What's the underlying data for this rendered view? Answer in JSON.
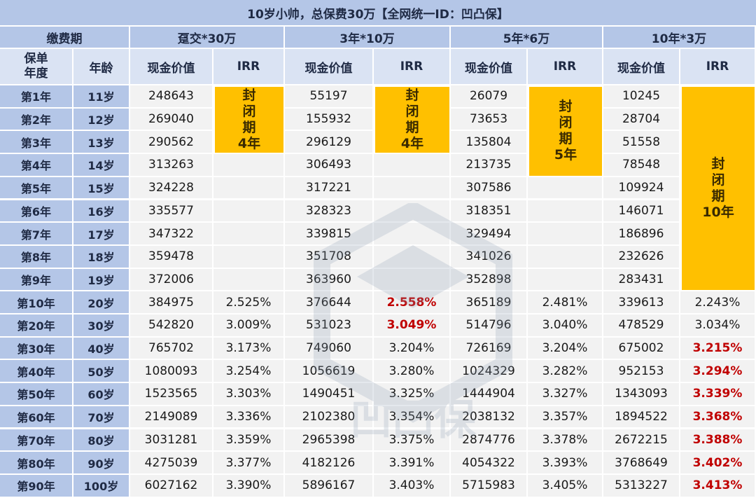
{
  "title": "10岁小帅，总保费30万【全网统一ID：凹凸保】",
  "headers": {
    "pay_period": "缴费期",
    "policy_year": "保单年度",
    "age": "年龄",
    "plans": [
      "趸交*30万",
      "3年*10万",
      "5年*6万",
      "10年*3万"
    ],
    "cash_value": "现金价值",
    "irr": "IRR"
  },
  "closed_periods": [
    "封闭期4年",
    "封闭期4年",
    "封闭期5年",
    "封闭期10年"
  ],
  "rows": [
    {
      "year": "第1年",
      "age": "11岁",
      "cv": [
        "248643",
        "55197",
        "26079",
        "10245"
      ],
      "irr": [
        "",
        "",
        "",
        ""
      ]
    },
    {
      "year": "第2年",
      "age": "12岁",
      "cv": [
        "269040",
        "155932",
        "73653",
        "28704"
      ],
      "irr": [
        "",
        "",
        "",
        ""
      ]
    },
    {
      "year": "第3年",
      "age": "13岁",
      "cv": [
        "290562",
        "296129",
        "135804",
        "51558"
      ],
      "irr": [
        "",
        "",
        "",
        ""
      ]
    },
    {
      "year": "第4年",
      "age": "14岁",
      "cv": [
        "313263",
        "306493",
        "213735",
        "78548"
      ],
      "irr": [
        "",
        "",
        "",
        ""
      ]
    },
    {
      "year": "第5年",
      "age": "15岁",
      "cv": [
        "324228",
        "317221",
        "307586",
        "109924"
      ],
      "irr": [
        "",
        "",
        "",
        ""
      ]
    },
    {
      "year": "第6年",
      "age": "16岁",
      "cv": [
        "335577",
        "328323",
        "318351",
        "146071"
      ],
      "irr": [
        "",
        "",
        "",
        ""
      ]
    },
    {
      "year": "第7年",
      "age": "17岁",
      "cv": [
        "347322",
        "339815",
        "329494",
        "186896"
      ],
      "irr": [
        "",
        "",
        "",
        ""
      ]
    },
    {
      "year": "第8年",
      "age": "18岁",
      "cv": [
        "359478",
        "351708",
        "341026",
        "232626"
      ],
      "irr": [
        "",
        "",
        "",
        ""
      ]
    },
    {
      "year": "第9年",
      "age": "19岁",
      "cv": [
        "372006",
        "363960",
        "352898",
        "283431"
      ],
      "irr": [
        "",
        "",
        "",
        ""
      ]
    },
    {
      "year": "第10年",
      "age": "20岁",
      "cv": [
        "384975",
        "376644",
        "365189",
        "339613"
      ],
      "irr": [
        "2.525%",
        "2.558%",
        "2.481%",
        "2.243%"
      ]
    },
    {
      "year": "第20年",
      "age": "30岁",
      "cv": [
        "542820",
        "531023",
        "514796",
        "478529"
      ],
      "irr": [
        "3.009%",
        "3.049%",
        "3.040%",
        "3.034%"
      ]
    },
    {
      "year": "第30年",
      "age": "40岁",
      "cv": [
        "765702",
        "749060",
        "726169",
        "675002"
      ],
      "irr": [
        "3.173%",
        "3.204%",
        "3.204%",
        "3.215%"
      ]
    },
    {
      "year": "第40年",
      "age": "50岁",
      "cv": [
        "1080093",
        "1056619",
        "1024329",
        "952153"
      ],
      "irr": [
        "3.254%",
        "3.280%",
        "3.282%",
        "3.294%"
      ]
    },
    {
      "year": "第50年",
      "age": "60岁",
      "cv": [
        "1523565",
        "1490451",
        "1444904",
        "1343093"
      ],
      "irr": [
        "3.303%",
        "3.325%",
        "3.327%",
        "3.339%"
      ]
    },
    {
      "year": "第60年",
      "age": "70岁",
      "cv": [
        "2149089",
        "2102380",
        "2038132",
        "1894522"
      ],
      "irr": [
        "3.336%",
        "3.354%",
        "3.357%",
        "3.368%"
      ]
    },
    {
      "year": "第70年",
      "age": "80岁",
      "cv": [
        "3031281",
        "2965398",
        "2874776",
        "2672215"
      ],
      "irr": [
        "3.359%",
        "3.375%",
        "3.378%",
        "3.388%"
      ]
    },
    {
      "year": "第80年",
      "age": "90岁",
      "cv": [
        "4275039",
        "4182126",
        "4054322",
        "3768649"
      ],
      "irr": [
        "3.377%",
        "3.391%",
        "3.393%",
        "3.402%"
      ]
    },
    {
      "year": "第90年",
      "age": "100岁",
      "cv": [
        "6027162",
        "5896167",
        "5715983",
        "5313227"
      ],
      "irr": [
        "3.390%",
        "3.403%",
        "3.405%",
        "3.413%"
      ]
    }
  ],
  "highlight_color": "#c00000",
  "block_color": "#ffc000",
  "watermark_text": "凹凸保"
}
